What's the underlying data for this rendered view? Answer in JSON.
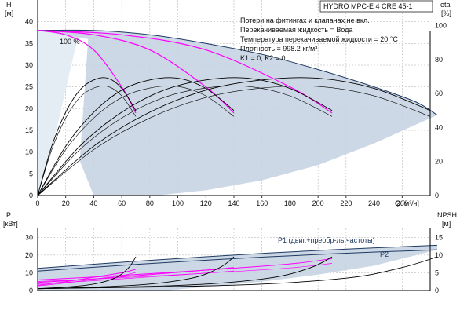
{
  "title": "HYDRO MPC-E 4 CRE 45-1",
  "annotations": [
    "Потери на фитингах и клапанах не вкл.",
    "Перекачиваемая жидкость = Вода",
    "Температура перекачиваемой жидкости = 20 °C",
    "Плотность = 998.2 кг/м³",
    "K1 = 0, K2 = 0"
  ],
  "percent_label": "100 %",
  "colors": {
    "envelope": "#c6d4e2",
    "envelope_light": "#e4ecf4",
    "head_curve": "#ff00ff",
    "efficiency_curve": "#000000",
    "power_line": "#1f3a63"
  },
  "chart_data": [
    {
      "type": "line",
      "panel": "head-efficiency",
      "xlabel": "Q [м³/ч]",
      "ylabel": "H [м]",
      "y2label": "eta [%]",
      "xlim": [
        0,
        280
      ],
      "ylim": [
        0,
        45
      ],
      "y2lim": [
        0,
        115
      ],
      "x_ticks": [
        0,
        20,
        40,
        60,
        80,
        100,
        120,
        140,
        160,
        180,
        200,
        220,
        240,
        260
      ],
      "y_ticks": [
        0,
        5,
        10,
        15,
        20,
        25,
        30,
        35,
        40
      ],
      "y2_ticks": [
        0,
        20,
        40,
        60,
        80,
        100
      ],
      "grid": true,
      "envelope": {
        "x": [
          0,
          40,
          80,
          120,
          160,
          200,
          240,
          270,
          285
        ],
        "y": [
          38,
          38,
          37,
          35,
          32.5,
          29,
          25,
          21.5,
          18.5
        ]
      },
      "head_curves": [
        {
          "x": [
            0,
            20,
            40,
            60,
            70
          ],
          "y": [
            38,
            37,
            33.5,
            25,
            19
          ]
        },
        {
          "x": [
            0,
            40,
            80,
            120,
            140
          ],
          "y": [
            38,
            37,
            33.5,
            25,
            19
          ]
        },
        {
          "x": [
            0,
            60,
            120,
            180,
            210
          ],
          "y": [
            38,
            37,
            33.5,
            25,
            19
          ]
        }
      ],
      "efficiency_curves": [
        {
          "x": [
            0,
            10,
            20,
            30,
            40,
            50,
            60,
            70
          ],
          "y": [
            0,
            29,
            49,
            62,
            68,
            69,
            63,
            50
          ]
        },
        {
          "x": [
            0,
            20,
            40,
            60,
            80,
            100,
            120,
            140
          ],
          "y": [
            0,
            29,
            49,
            62,
            68,
            69,
            63,
            50
          ]
        },
        {
          "x": [
            0,
            30,
            60,
            90,
            120,
            150,
            180,
            210
          ],
          "y": [
            0,
            29,
            49,
            62,
            68,
            69,
            63,
            50
          ]
        },
        {
          "x": [
            0,
            40,
            80,
            120,
            160,
            200,
            240,
            280
          ],
          "y": [
            0,
            29,
            49,
            62,
            68,
            69,
            63,
            50
          ]
        }
      ]
    },
    {
      "type": "line",
      "panel": "power-npsh",
      "ylabel": "P [кВт]",
      "y2label": "NPSH [м]",
      "xlim": [
        0,
        280
      ],
      "ylim": [
        0,
        35
      ],
      "y2lim": [
        0,
        17.5
      ],
      "y_ticks": [
        0,
        10,
        20,
        30
      ],
      "y2_ticks": [
        0,
        5,
        10,
        15
      ],
      "grid": true,
      "series": [
        {
          "name": "P1 (двиг.+преобр-ль частоты)",
          "x": [
            0,
            70,
            140,
            210,
            285
          ],
          "y": [
            12.5,
            16.5,
            20,
            23,
            25.5
          ]
        },
        {
          "name": "P2",
          "x": [
            0,
            70,
            140,
            210,
            285
          ],
          "y": [
            11,
            14.7,
            18,
            20.7,
            23
          ]
        }
      ],
      "power_curves": [
        {
          "x": [
            0,
            20,
            40,
            60,
            70
          ],
          "y": [
            3,
            5,
            7.5,
            10,
            12
          ]
        },
        {
          "x": [
            0,
            40,
            80,
            120,
            140
          ],
          "y": [
            4.5,
            6.5,
            9,
            11.5,
            13
          ]
        },
        {
          "x": [
            0,
            60,
            120,
            180,
            210
          ],
          "y": [
            6,
            8.5,
            11.5,
            15,
            18
          ]
        }
      ],
      "npsh_curves": [
        {
          "x": [
            0,
            35,
            55,
            65,
            70
          ],
          "y": [
            0.5,
            1.5,
            3.5,
            6.5,
            9.5
          ]
        },
        {
          "x": [
            0,
            70,
            110,
            130,
            140
          ],
          "y": [
            0.5,
            1.5,
            3.5,
            6.5,
            9.5
          ]
        },
        {
          "x": [
            0,
            105,
            165,
            195,
            210
          ],
          "y": [
            0.5,
            1.5,
            3.5,
            6.5,
            9.5
          ]
        },
        {
          "x": [
            0,
            140,
            220,
            260,
            285
          ],
          "y": [
            0.5,
            1.5,
            3.5,
            6.5,
            9.5
          ]
        }
      ]
    }
  ]
}
